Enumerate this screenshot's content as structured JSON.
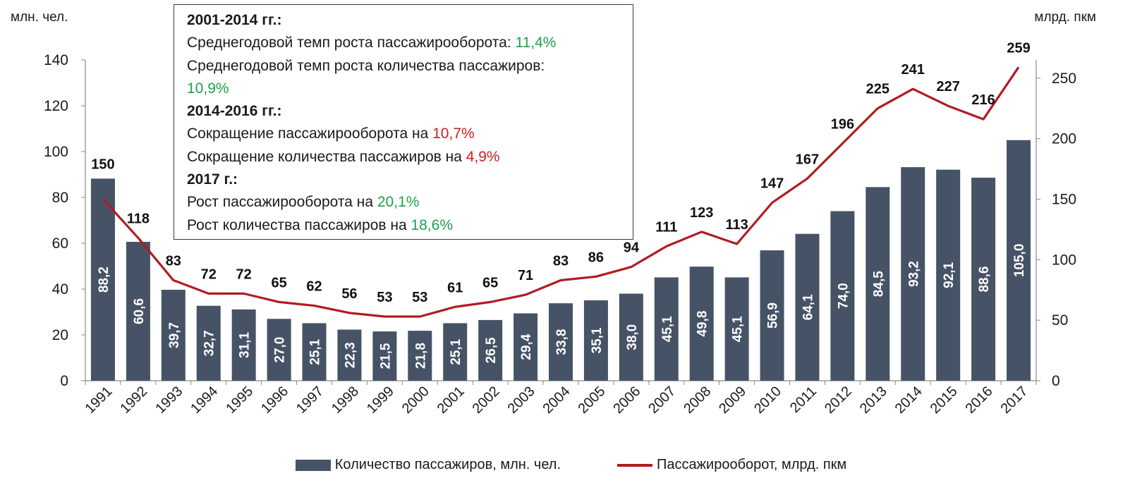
{
  "chart_data": {
    "type": "bar+line",
    "categories": [
      "1991",
      "1992",
      "1993",
      "1994",
      "1995",
      "1996",
      "1997",
      "1998",
      "1999",
      "2000",
      "2001",
      "2002",
      "2003",
      "2004",
      "2005",
      "2006",
      "2007",
      "2008",
      "2009",
      "2010",
      "2011",
      "2012",
      "2013",
      "2014",
      "2015",
      "2016",
      "2017"
    ],
    "series": [
      {
        "name": "Количество пассажиров, млн. чел.",
        "type": "bar",
        "axis": "left",
        "values": [
          88.2,
          60.6,
          39.7,
          32.7,
          31.1,
          27.0,
          25.1,
          22.3,
          21.5,
          21.8,
          25.1,
          26.5,
          29.4,
          33.8,
          35.1,
          38.0,
          45.1,
          49.8,
          45.1,
          56.9,
          64.1,
          74.0,
          84.5,
          93.2,
          92.1,
          88.6,
          105.0
        ],
        "labels": [
          "88,2",
          "60,6",
          "39,7",
          "32,7",
          "31,1",
          "27,0",
          "25,1",
          "22,3",
          "21,5",
          "21,8",
          "25,1",
          "26,5",
          "29,4",
          "33,8",
          "35,1",
          "38,0",
          "45,1",
          "49,8",
          "45,1",
          "56,9",
          "64,1",
          "74,0",
          "84,5",
          "93,2",
          "92,1",
          "88,6",
          "105,0"
        ]
      },
      {
        "name": "Пассажирооборот, млрд. пкм",
        "type": "line",
        "axis": "right",
        "values": [
          150,
          118,
          83,
          72,
          72,
          65,
          62,
          56,
          53,
          53,
          61,
          65,
          71,
          83,
          86,
          94,
          111,
          123,
          113,
          147,
          167,
          196,
          225,
          241,
          227,
          216,
          259
        ],
        "labels": [
          "150",
          "118",
          "83",
          "72",
          "72",
          "65",
          "62",
          "56",
          "53",
          "53",
          "61",
          "65",
          "71",
          "83",
          "86",
          "94",
          "111",
          "123",
          "113",
          "147",
          "167",
          "196",
          "225",
          "241",
          "227",
          "216",
          "259"
        ]
      }
    ],
    "y_left": {
      "label": "млн. чел.",
      "range": [
        0,
        140
      ],
      "ticks": [
        "0",
        "20",
        "40",
        "60",
        "80",
        "100",
        "120",
        "140"
      ]
    },
    "y_right": {
      "label": "млрд. пкм",
      "range": [
        0,
        265
      ],
      "ticks": [
        "0",
        "50",
        "100",
        "150",
        "200",
        "250"
      ]
    },
    "colors": {
      "bar": "#465366",
      "line": "#b01c22",
      "bar_label": "#ffffff",
      "axis": "#8a8a8a"
    }
  },
  "notes": [
    {
      "kind": "head",
      "text": "2001-2014 гг.:"
    },
    {
      "kind": "text",
      "text": "Среднегодовой темп роста пассажирооборота: ",
      "value": "11,4%",
      "color": "green"
    },
    {
      "kind": "text",
      "text": "Среднегодовой темп роста количества пассажиров:"
    },
    {
      "kind": "text",
      "text": "",
      "value": "10,9%",
      "color": "green"
    },
    {
      "kind": "head",
      "text": "2014-2016 гг.:"
    },
    {
      "kind": "text",
      "text": "Сокращение пассажирооборота на ",
      "value": "10,7%",
      "color": "red"
    },
    {
      "kind": "text",
      "text": "Сокращение количества пассажиров на ",
      "value": "4,9%",
      "color": "red"
    },
    {
      "kind": "head",
      "text": "2017 г.:"
    },
    {
      "kind": "text",
      "text": "Рост пассажирооборота на ",
      "value": "20,1%",
      "color": "green"
    },
    {
      "kind": "text",
      "text": "Рост количества пассажиров на ",
      "value": "18,6%",
      "color": "green"
    }
  ],
  "legend": {
    "bar_label": "Количество пассажиров, млн. чел.",
    "line_label": "Пассажирооборот, млрд. пкм"
  }
}
